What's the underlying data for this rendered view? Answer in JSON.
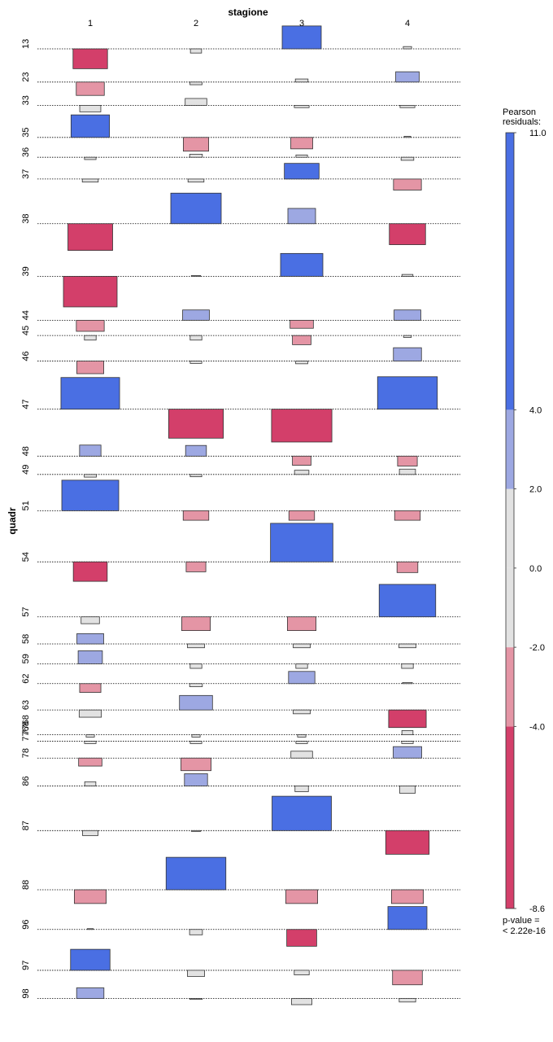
{
  "chart_data": {
    "type": "association",
    "title": "stagione",
    "ylabel": "quadr",
    "categories": [
      "1",
      "2",
      "3",
      "4"
    ],
    "rows": [
      {
        "label": "13",
        "residuals": [
          -5.2,
          -1.1,
          6.0,
          0.6
        ]
      },
      {
        "label": "23",
        "residuals": [
          -3.5,
          -0.7,
          0.8,
          2.7
        ]
      },
      {
        "label": "33",
        "residuals": [
          -1.7,
          1.8,
          -0.6,
          -0.6
        ]
      },
      {
        "label": "35",
        "residuals": [
          5.9,
          -3.6,
          -3.0,
          0.3
        ]
      },
      {
        "label": "36",
        "residuals": [
          -0.6,
          0.8,
          0.6,
          -0.8
        ]
      },
      {
        "label": "37",
        "residuals": [
          -0.8,
          -0.8,
          4.1,
          -2.9
        ]
      },
      {
        "label": "38",
        "residuals": [
          -7.0,
          8.0,
          4.0,
          -5.5
        ]
      },
      {
        "label": "39",
        "residuals": [
          -8.0,
          0.2,
          6.0,
          0.5
        ]
      },
      {
        "label": "44",
        "residuals": [
          -2.9,
          2.7,
          -2.1,
          2.7
        ]
      },
      {
        "label": "45",
        "residuals": [
          -1.2,
          -1.2,
          -2.4,
          -0.5
        ]
      },
      {
        "label": "46",
        "residuals": [
          -3.3,
          -0.6,
          -0.7,
          3.5
        ]
      },
      {
        "label": "47",
        "residuals": [
          8.3,
          -7.6,
          -8.6,
          8.5
        ]
      },
      {
        "label": "48",
        "residuals": [
          2.9,
          2.8,
          -2.4,
          -2.6
        ]
      },
      {
        "label": "49",
        "residuals": [
          -0.7,
          -0.6,
          1.1,
          1.4
        ]
      },
      {
        "label": "51",
        "residuals": [
          8.0,
          -2.5,
          -2.5,
          -2.5
        ]
      },
      {
        "label": "54",
        "residuals": [
          -5.1,
          -2.6,
          10.1,
          -2.8
        ]
      },
      {
        "label": "57",
        "residuals": [
          -1.8,
          -3.6,
          -3.6,
          8.5
        ]
      },
      {
        "label": "58",
        "residuals": [
          2.7,
          -1.0,
          -1.0,
          -1.0
        ]
      },
      {
        "label": "59",
        "residuals": [
          3.4,
          -1.2,
          -1.2,
          -1.2
        ]
      },
      {
        "label": "62",
        "residuals": [
          -2.3,
          -0.8,
          3.2,
          0.3
        ]
      },
      {
        "label": "63",
        "residuals": [
          -1.9,
          3.8,
          -1.0,
          -4.6
        ]
      },
      {
        "label": "7768",
        "residuals": [
          -0.6,
          -0.6,
          -0.6,
          1.1
        ]
      },
      {
        "label": "7768",
        "residuals": [
          -0.6,
          -0.6,
          -0.6,
          -0.6
        ]
      },
      {
        "label": "78",
        "residuals": [
          -2.1,
          -3.3,
          1.8,
          3.0
        ]
      },
      {
        "label": "86",
        "residuals": [
          1.1,
          3.2,
          -1.5,
          -1.9
        ]
      },
      {
        "label": "87",
        "residuals": [
          -1.3,
          -0.2,
          9.0,
          -6.2
        ]
      },
      {
        "label": "88",
        "residuals": [
          -3.6,
          8.5,
          -3.6,
          -3.6
        ]
      },
      {
        "label": "96",
        "residuals": [
          0.2,
          -1.4,
          -4.4,
          6.0
        ]
      },
      {
        "label": "97",
        "residuals": [
          5.5,
          -1.6,
          -1.2,
          -3.8
        ]
      },
      {
        "label": "98",
        "residuals": [
          2.8,
          -0.2,
          -1.6,
          -0.9
        ]
      }
    ],
    "legend": {
      "title_line1": "Pearson",
      "title_line2": "residuals:",
      "breaks": [
        -8.6,
        -4.0,
        -2.0,
        0.0,
        2.0,
        4.0,
        11.0
      ],
      "tick_labels": [
        "11.0",
        "4.0",
        "2.0",
        "0.0",
        "-2.0",
        "-4.0",
        "-8.6"
      ],
      "colors": {
        "strong_pos": "#4A6FE3",
        "mid_pos": "#9DA8E2",
        "neutral": "#E2E2E2",
        "mid_neg": "#E495A5",
        "strong_neg": "#D33F6A"
      },
      "pvalue_line1": "p-value =",
      "pvalue_line2": "< 2.22e-16"
    }
  }
}
